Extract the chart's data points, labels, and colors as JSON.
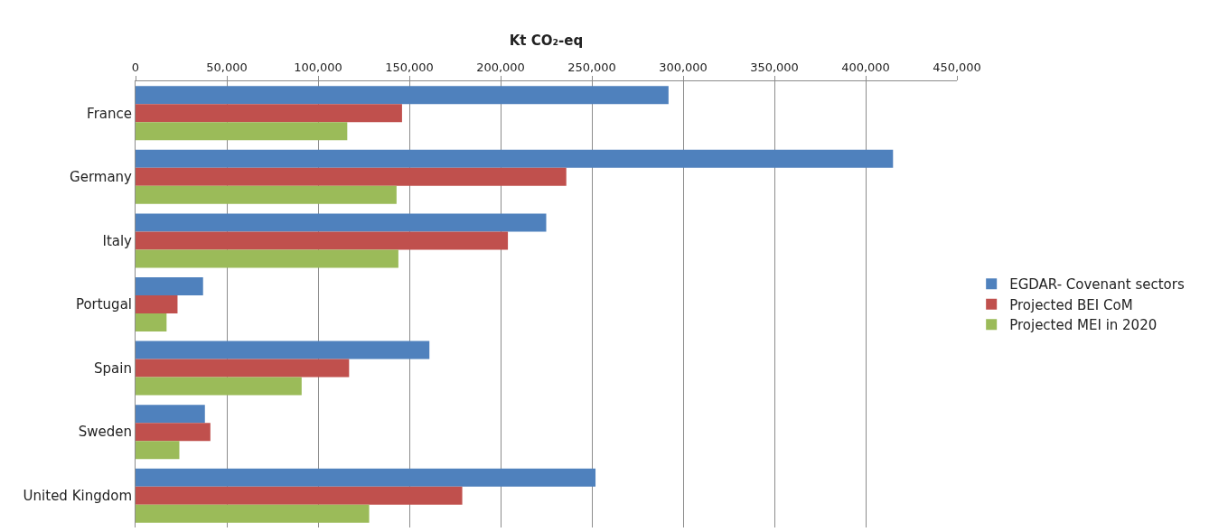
{
  "chart_data": {
    "type": "bar",
    "orientation": "horizontal",
    "xlabel": "Kt CO₂-eq",
    "categories": [
      "France",
      "Germany",
      "Italy",
      "Portugal",
      "Spain",
      "Sweden",
      "United Kingdom"
    ],
    "series": [
      {
        "name": "EGDAR- Covenant sectors",
        "color": "#4f81bd",
        "values": [
          292000,
          415000,
          225000,
          37000,
          161000,
          38000,
          252000
        ]
      },
      {
        "name": "Projected BEI CoM",
        "color": "#c0504d",
        "values": [
          146000,
          236000,
          204000,
          23000,
          117000,
          41000,
          179000
        ]
      },
      {
        "name": "Projected MEI in 2020",
        "color": "#9bbb59",
        "values": [
          116000,
          143000,
          144000,
          17000,
          91000,
          24000,
          128000
        ]
      }
    ],
    "xlim": [
      0,
      450000
    ],
    "xticks": [
      0,
      {
        "value": 50000,
        "label": "50,000"
      },
      {
        "value": 100000,
        "label": "100,000"
      },
      {
        "value": 150000,
        "label": "150,000"
      },
      {
        "value": 200000,
        "label": "200,000"
      },
      {
        "value": 250000,
        "label": "250,000"
      },
      {
        "value": 300000,
        "label": "300,000"
      },
      {
        "value": 350000,
        "label": "350,000"
      },
      {
        "value": 400000,
        "label": "400,000"
      },
      {
        "value": 450000,
        "label": "450,000"
      }
    ],
    "grid": "x",
    "legend": "right"
  }
}
